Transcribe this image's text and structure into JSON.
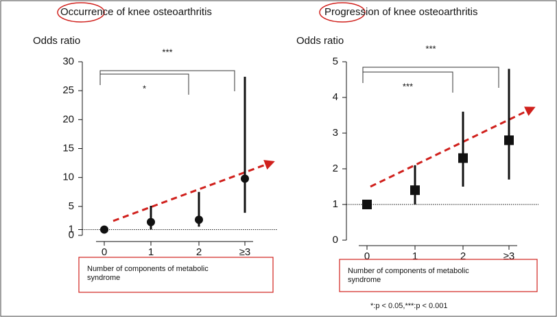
{
  "chart_data": [
    {
      "type": "errorbar",
      "title": "Occurrence of knee osteoarthritis",
      "ylabel": "Odds ratio",
      "xlabel": "Number of components of metabolic syndrome",
      "categories": [
        "0",
        "1",
        "2",
        "≥3"
      ],
      "values": [
        1.0,
        2.3,
        2.7,
        9.8
      ],
      "lower": [
        1.0,
        1.0,
        1.5,
        3.9
      ],
      "upper": [
        1.0,
        5.1,
        7.5,
        27.4
      ],
      "marker": "circle",
      "color": "#111111",
      "reference_line": 1,
      "ylim": [
        0,
        30
      ],
      "yticks": [
        0,
        1,
        5,
        10,
        15,
        20,
        25,
        30
      ],
      "annotations": [
        "***",
        "*"
      ]
    },
    {
      "type": "errorbar",
      "title": "Progression of knee osteoarthritis",
      "ylabel": "Odds ratio",
      "xlabel": "Number of components of metabolic syndrome",
      "categories": [
        "0",
        "1",
        "2",
        "≥3"
      ],
      "values": [
        1.0,
        1.4,
        2.3,
        2.8
      ],
      "lower": [
        1.0,
        1.0,
        1.5,
        1.7
      ],
      "upper": [
        1.0,
        2.1,
        3.6,
        4.8
      ],
      "marker": "square",
      "color": "#111111",
      "reference_line": 1,
      "ylim": [
        0,
        5
      ],
      "yticks": [
        0,
        1,
        2,
        3,
        4,
        5
      ],
      "annotations": [
        "***",
        "***"
      ]
    }
  ],
  "footnote": "*:p < 0.05,***:p < 0.001"
}
